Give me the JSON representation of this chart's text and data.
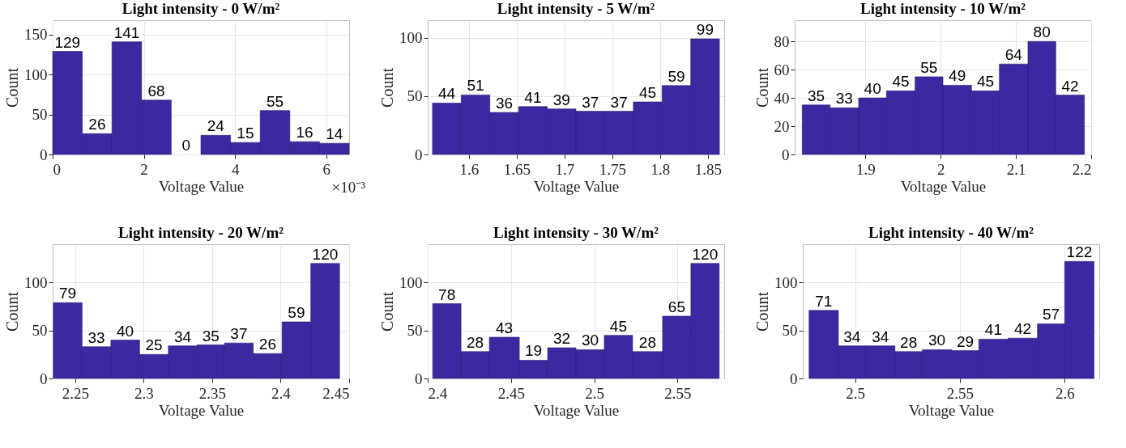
{
  "chart_data": [
    {
      "type": "histogram",
      "title": "Light intensity - 0 W/m²",
      "xlabel": "Voltage Value",
      "ylabel": "Count",
      "color": "#3c28a0",
      "grid": true,
      "data_labels": true,
      "bins": [
        0,
        0.65,
        1.3,
        1.95,
        2.6,
        3.25,
        3.9,
        4.55,
        5.2,
        5.85,
        6.5
      ],
      "values": [
        129,
        26,
        141,
        68,
        0,
        24,
        15,
        55,
        16,
        14
      ],
      "xlim": [
        0,
        6.5
      ],
      "ylim": [
        0,
        168
      ],
      "yticks": [
        0,
        50,
        100,
        150
      ],
      "xticks": [
        0,
        2,
        4,
        6
      ],
      "annotations": [
        "×10⁻³"
      ]
    },
    {
      "type": "histogram",
      "title": "Light intensity - 5 W/m²",
      "xlabel": "Voltage Value",
      "ylabel": "Count",
      "color": "#3c28a0",
      "grid": true,
      "data_labels": true,
      "bins": [
        1.562,
        1.592,
        1.622,
        1.652,
        1.682,
        1.712,
        1.742,
        1.772,
        1.802,
        1.832,
        1.862
      ],
      "values": [
        44,
        51,
        36,
        41,
        39,
        37,
        37,
        45,
        59,
        99
      ],
      "xlim": [
        1.557,
        1.867
      ],
      "ylim": [
        0,
        115
      ],
      "yticks": [
        0,
        50,
        100
      ],
      "xticks": [
        1.6,
        1.65,
        1.7,
        1.75,
        1.8,
        1.85
      ]
    },
    {
      "type": "histogram",
      "title": "Light intensity - 10 W/m²",
      "xlabel": "Voltage Value",
      "ylabel": "Count",
      "color": "#3c28a0",
      "grid": true,
      "data_labels": true,
      "bins": [
        1.816,
        1.853,
        1.891,
        1.928,
        1.966,
        2.003,
        2.041,
        2.078,
        2.116,
        2.153,
        2.191
      ],
      "values": [
        35,
        33,
        40,
        45,
        55,
        49,
        45,
        64,
        80,
        42
      ],
      "xlim": [
        1.806,
        2.2
      ],
      "ylim": [
        0,
        95
      ],
      "yticks": [
        0,
        20,
        40,
        60,
        80
      ],
      "xticks": [
        1.9,
        2,
        2.1,
        2.2
      ]
    },
    {
      "type": "histogram",
      "title": "Light intensity - 20 W/m²",
      "xlabel": "Voltage Value",
      "ylabel": "Count",
      "color": "#3c28a0",
      "grid": true,
      "data_labels": true,
      "bins": [
        2.234,
        2.255,
        2.276,
        2.297,
        2.318,
        2.339,
        2.359,
        2.38,
        2.401,
        2.422,
        2.443
      ],
      "values": [
        79,
        33,
        40,
        25,
        34,
        35,
        37,
        26,
        59,
        120
      ],
      "xlim": [
        2.2335,
        2.45
      ],
      "ylim": [
        0,
        140
      ],
      "yticks": [
        0,
        50,
        100
      ],
      "xticks": [
        2.25,
        2.3,
        2.35,
        2.4,
        2.45
      ]
    },
    {
      "type": "histogram",
      "title": "Light intensity - 30 W/m²",
      "xlabel": "Voltage Value",
      "ylabel": "Count",
      "color": "#3c28a0",
      "grid": true,
      "data_labels": true,
      "bins": [
        2.403,
        2.42,
        2.437,
        2.455,
        2.472,
        2.489,
        2.506,
        2.523,
        2.541,
        2.558,
        2.575
      ],
      "values": [
        78,
        28,
        43,
        19,
        32,
        30,
        45,
        28,
        65,
        120
      ],
      "xlim": [
        2.4,
        2.578
      ],
      "ylim": [
        0,
        140
      ],
      "yticks": [
        0,
        50,
        100
      ],
      "xticks": [
        2.4,
        2.45,
        2.5,
        2.55
      ]
    },
    {
      "type": "histogram",
      "title": "Light intensity - 40 W/m²",
      "xlabel": "Voltage Value",
      "ylabel": "Count",
      "color": "#3c28a0",
      "grid": true,
      "data_labels": true,
      "bins": [
        2.478,
        2.492,
        2.505,
        2.519,
        2.532,
        2.546,
        2.559,
        2.573,
        2.587,
        2.6,
        2.614
      ],
      "values": [
        71,
        34,
        34,
        28,
        30,
        29,
        41,
        42,
        57,
        122
      ],
      "xlim": [
        2.475,
        2.6165
      ],
      "ylim": [
        0,
        140
      ],
      "yticks": [
        0,
        50,
        100
      ],
      "xticks": [
        2.5,
        2.55,
        2.6
      ]
    }
  ]
}
